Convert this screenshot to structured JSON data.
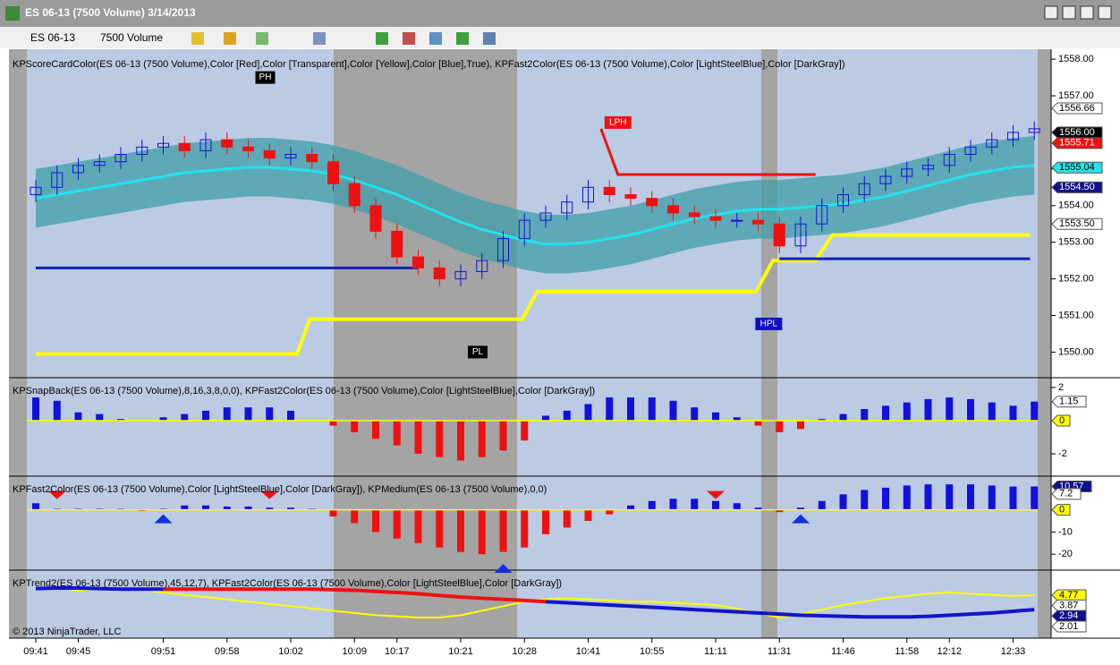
{
  "window": {
    "title": "ES 06-13 (7500 Volume)  3/14/2013"
  },
  "toolbar": {
    "instrument": "ES 06-13",
    "interval": "7500 Volume"
  },
  "copyright": "© 2013 NinjaTrader, LLC",
  "chart_data": [
    {
      "type": "candlestick",
      "title": "KPScoreCardColor(ES 06-13 (7500 Volume),Color [Red],Color [Transparent],Color [Yellow],Color [Blue],True), KPFast2Color(ES 06-13 (7500 Volume),Color [LightSteelBlue],Color [DarkGray])",
      "categories": [
        "09:41",
        null,
        "09:45",
        null,
        null,
        null,
        "09:51",
        null,
        null,
        "09:58",
        null,
        null,
        "10:02",
        null,
        null,
        "10:09",
        null,
        "10:17",
        null,
        null,
        "10:21",
        null,
        null,
        "10:28",
        null,
        null,
        "10:41",
        null,
        null,
        "10:55",
        null,
        null,
        "11:11",
        null,
        null,
        "11:31",
        null,
        null,
        "11:46",
        null,
        null,
        "11:58",
        null,
        "12:12",
        null,
        null,
        "12:33",
        null
      ],
      "open": [
        1554.3,
        1554.5,
        1554.9,
        1555.1,
        1555.2,
        1555.4,
        1555.6,
        1555.7,
        1555.5,
        1555.8,
        1555.6,
        1555.5,
        1555.3,
        1555.4,
        1555.2,
        1554.6,
        1554.0,
        1553.3,
        1552.6,
        1552.3,
        1552.0,
        1552.2,
        1552.5,
        1553.1,
        1553.6,
        1553.8,
        1554.1,
        1554.5,
        1554.3,
        1554.2,
        1554.0,
        1553.8,
        1553.7,
        1553.6,
        1553.6,
        1553.5,
        1552.9,
        1553.5,
        1554.0,
        1554.3,
        1554.6,
        1554.8,
        1555.0,
        1555.1,
        1555.4,
        1555.6,
        1555.8,
        1556.0
      ],
      "close": [
        1554.5,
        1554.9,
        1555.1,
        1555.2,
        1555.4,
        1555.6,
        1555.7,
        1555.5,
        1555.8,
        1555.6,
        1555.5,
        1555.3,
        1555.4,
        1555.2,
        1554.6,
        1554.0,
        1553.3,
        1552.6,
        1552.3,
        1552.0,
        1552.2,
        1552.5,
        1553.1,
        1553.6,
        1553.8,
        1554.1,
        1554.5,
        1554.3,
        1554.2,
        1554.0,
        1553.8,
        1553.7,
        1553.6,
        1553.6,
        1553.5,
        1552.9,
        1553.5,
        1554.0,
        1554.3,
        1554.6,
        1554.8,
        1555.0,
        1555.1,
        1555.4,
        1555.6,
        1555.8,
        1556.0,
        1556.1
      ],
      "high": [
        1554.7,
        1555.1,
        1555.3,
        1555.4,
        1555.6,
        1555.8,
        1555.9,
        1555.9,
        1556.0,
        1556.0,
        1555.8,
        1555.7,
        1555.6,
        1555.6,
        1555.4,
        1554.8,
        1554.2,
        1553.5,
        1552.8,
        1552.5,
        1552.4,
        1552.7,
        1553.3,
        1553.8,
        1554.0,
        1554.3,
        1554.7,
        1554.7,
        1554.5,
        1554.4,
        1554.2,
        1554.0,
        1553.9,
        1553.8,
        1553.8,
        1553.7,
        1553.7,
        1554.2,
        1554.5,
        1554.8,
        1555.0,
        1555.2,
        1555.3,
        1555.6,
        1555.8,
        1556.0,
        1556.2,
        1556.3
      ],
      "low": [
        1554.1,
        1554.3,
        1554.7,
        1554.9,
        1555.0,
        1555.2,
        1555.4,
        1555.3,
        1555.3,
        1555.4,
        1555.3,
        1555.1,
        1555.1,
        1555.0,
        1554.4,
        1553.8,
        1553.1,
        1552.4,
        1552.1,
        1551.8,
        1551.8,
        1552.0,
        1552.3,
        1552.9,
        1553.4,
        1553.6,
        1553.9,
        1554.1,
        1554.0,
        1553.8,
        1553.6,
        1553.5,
        1553.4,
        1553.4,
        1553.3,
        1552.7,
        1552.7,
        1553.3,
        1553.8,
        1554.1,
        1554.4,
        1554.6,
        1554.8,
        1554.9,
        1555.2,
        1555.4,
        1555.6,
        1555.8
      ],
      "up_color": "#1414d2",
      "down_color": "#ee1111",
      "band": {
        "color": "#3f9ea8",
        "upper": [
          1555.0,
          1555.1,
          1555.2,
          1555.3,
          1555.4,
          1555.5,
          1555.6,
          1555.7,
          1555.75,
          1555.8,
          1555.85,
          1555.85,
          1555.8,
          1555.75,
          1555.65,
          1555.5,
          1555.3,
          1555.1,
          1554.85,
          1554.6,
          1554.35,
          1554.15,
          1554.0,
          1553.85,
          1553.75,
          1553.75,
          1553.8,
          1553.9,
          1554.0,
          1554.15,
          1554.3,
          1554.45,
          1554.55,
          1554.65,
          1554.7,
          1554.7,
          1554.75,
          1554.8,
          1554.85,
          1554.95,
          1555.05,
          1555.2,
          1555.35,
          1555.5,
          1555.65,
          1555.75,
          1555.85,
          1555.9
        ],
        "lower": [
          1553.4,
          1553.5,
          1553.6,
          1553.7,
          1553.8,
          1553.9,
          1554.0,
          1554.1,
          1554.15,
          1554.2,
          1554.25,
          1554.25,
          1554.2,
          1554.15,
          1554.05,
          1553.9,
          1553.7,
          1553.5,
          1553.25,
          1553.0,
          1552.75,
          1552.55,
          1552.4,
          1552.25,
          1552.15,
          1552.15,
          1552.2,
          1552.3,
          1552.4,
          1552.55,
          1552.7,
          1552.85,
          1552.95,
          1553.05,
          1553.1,
          1553.1,
          1553.15,
          1553.2,
          1553.25,
          1553.35,
          1553.45,
          1553.6,
          1553.75,
          1553.9,
          1554.05,
          1554.15,
          1554.25,
          1554.3
        ]
      },
      "midline": {
        "color": "#22e4ec",
        "values": [
          1554.2,
          1554.3,
          1554.4,
          1554.5,
          1554.6,
          1554.7,
          1554.8,
          1554.9,
          1554.95,
          1555.0,
          1555.05,
          1555.05,
          1555.0,
          1554.95,
          1554.85,
          1554.7,
          1554.5,
          1554.3,
          1554.05,
          1553.8,
          1553.55,
          1553.35,
          1553.2,
          1553.05,
          1552.95,
          1552.95,
          1553.0,
          1553.1,
          1553.2,
          1553.35,
          1553.5,
          1553.65,
          1553.75,
          1553.85,
          1553.9,
          1553.9,
          1553.95,
          1554.0,
          1554.05,
          1554.15,
          1554.25,
          1554.4,
          1554.55,
          1554.7,
          1554.85,
          1554.95,
          1555.05,
          1555.1
        ]
      },
      "levels": [
        {
          "color": "#ffff00",
          "x": [
            0,
            12.3,
            12.9,
            22.9,
            23.6,
            33.9,
            34.7,
            36.7,
            37.5,
            46.8
          ],
          "values": [
            1549.95,
            1549.95,
            1550.9,
            1550.9,
            1551.65,
            1551.65,
            1552.5,
            1552.5,
            1553.2,
            1553.2
          ]
        },
        {
          "color": "#1020b0",
          "x": [
            0,
            18
          ],
          "values": [
            1552.3,
            1552.3
          ]
        },
        {
          "color": "#1020b0",
          "x": [
            35,
            46.8
          ],
          "values": [
            1552.55,
            1552.55
          ]
        },
        {
          "color": "#ee1111",
          "x": [
            26.6,
            27.4,
            36.7
          ],
          "values": [
            1556.1,
            1554.85,
            1554.85
          ]
        }
      ],
      "annotations": [
        {
          "text": "PH",
          "x": 10.8,
          "y": 1557.5,
          "bg": "#000000",
          "fg": "#ffffff"
        },
        {
          "text": "LPH",
          "x": 27.4,
          "y": 1556.27,
          "bg": "#ee1111",
          "fg": "#ffffff"
        },
        {
          "text": "PL",
          "x": 20.8,
          "y": 1550.0,
          "bg": "#000000",
          "fg": "#ffffff"
        },
        {
          "text": "HPL",
          "x": 34.5,
          "y": 1550.77,
          "bg": "#1010c0",
          "fg": "#ffffff"
        }
      ],
      "markers": [
        {
          "value": 1556.66,
          "label": "1556.66",
          "bg": "#ffffff",
          "fg": "#000000"
        },
        {
          "value": 1556.0,
          "label": "1556.00",
          "bg": "#000000",
          "fg": "#ffffff"
        },
        {
          "value": 1555.71,
          "label": "1555.71",
          "bg": "#ee1111",
          "fg": "#ffffff"
        },
        {
          "value": 1555.04,
          "label": "1555.04",
          "bg": "#22e4ec",
          "fg": "#000000"
        },
        {
          "value": 1554.5,
          "label": "1554.50",
          "bg": "#10108c",
          "fg": "#ffffff"
        },
        {
          "value": 1553.5,
          "label": "1553.50",
          "bg": "#ffffff",
          "fg": "#000000"
        }
      ],
      "ylim": [
        1549.35,
        1558.15
      ],
      "yticks": [
        {
          "value": 1550,
          "label": "1550.00"
        },
        {
          "value": 1551,
          "label": "1551.00"
        },
        {
          "value": 1552,
          "label": "1552.00"
        },
        {
          "value": 1553,
          "label": "1553.00"
        },
        {
          "value": 1554,
          "label": "1554.00"
        },
        {
          "value": 1555,
          "label": "1555.00"
        },
        {
          "value": 1556,
          "label": "1556.00"
        },
        {
          "value": 1557,
          "label": "1557.00"
        },
        {
          "value": 1558,
          "label": "1558.00"
        }
      ]
    },
    {
      "type": "bar",
      "title": "KPSnapBack(ES 06-13 (7500 Volume),8,16,3,8,0,0), KPFast2Color(ES 06-13 (7500 Volume),Color [LightSteelBlue],Color [DarkGray])",
      "values": [
        1.4,
        1.2,
        0.5,
        0.4,
        0.1,
        0,
        0.2,
        0.4,
        0.6,
        0.8,
        0.8,
        0.8,
        0.6,
        0,
        -0.3,
        -0.7,
        -1.1,
        -1.5,
        -2.0,
        -2.2,
        -2.4,
        -2.2,
        -1.8,
        -1.2,
        0.3,
        0.6,
        1.0,
        1.4,
        1.4,
        1.4,
        1.2,
        0.8,
        0.5,
        0.2,
        -0.3,
        -0.7,
        -0.5,
        0.1,
        0.4,
        0.7,
        0.9,
        1.1,
        1.3,
        1.4,
        1.3,
        1.1,
        0.9,
        1.15
      ],
      "pos_color": "#1010e0",
      "neg_color": "#ee1111",
      "zero_color": "#ffff00",
      "ylim": [
        -3.24,
        2.43
      ],
      "yticks": [
        2,
        -2
      ],
      "markers": [
        {
          "value": 1.15,
          "label": "1.15",
          "bg": "#ffffff",
          "fg": "#000000"
        },
        {
          "value": 0,
          "label": "0",
          "bg": "#ffff00",
          "fg": "#000000"
        }
      ]
    },
    {
      "type": "bar",
      "title": "KPFast2Color(ES 06-13 (7500 Volume),Color [LightSteelBlue],Color [DarkGray]), KPMedium(ES 06-13 (7500 Volume),0,0)",
      "values": [
        3,
        0.5,
        0.5,
        0.5,
        0.5,
        -0.5,
        0.5,
        2,
        2,
        1.5,
        1.5,
        1,
        1,
        0.5,
        -3,
        -6,
        -10,
        -13,
        -15,
        -17,
        -19,
        -20,
        -19,
        -17,
        -11,
        -8,
        -5,
        -2,
        2,
        4,
        5,
        5,
        4,
        3,
        1,
        -1,
        1,
        4,
        7,
        9,
        10,
        11,
        11.5,
        11.5,
        11.5,
        11,
        10.5,
        10.57
      ],
      "pos_color": "#1010e0",
      "neg_color": "#ee1111",
      "zero_color": "#ffff00",
      "down_signals": [
        1,
        11,
        32
      ],
      "up_signals": [
        6,
        22,
        36
      ],
      "ylim": [
        -26.4,
        14.0
      ],
      "yticks": [
        -10,
        -20
      ],
      "markers": [
        {
          "value": 10.57,
          "label": "10.57",
          "bg": "#10108c",
          "fg": "#ffffff"
        },
        {
          "value": 7.2,
          "label": "7.2",
          "bg": "#ffffff",
          "fg": "#000000"
        },
        {
          "value": 0,
          "label": "0",
          "bg": "#ffff00",
          "fg": "#000000"
        }
      ]
    },
    {
      "type": "line",
      "title": "KPTrend2(ES 06-13 (7500 Volume),45,12,7), KPFast2Color(ES 06-13 (7500 Volume),Color [LightSteelBlue],Color [DarkGray])",
      "series": [
        {
          "color": "#ffff00",
          "width": 2,
          "values": [
            5.4,
            5.5,
            5.2,
            5.3,
            5.3,
            5.2,
            5.0,
            4.8,
            4.6,
            4.4,
            4.2,
            4.0,
            3.8,
            3.6,
            3.4,
            3.2,
            3.0,
            2.9,
            2.8,
            2.8,
            3.0,
            3.4,
            3.8,
            4.2,
            4.4,
            4.5,
            4.4,
            4.3,
            4.2,
            4.2,
            4.1,
            4.0,
            3.9,
            3.6,
            3.2,
            2.8,
            3.1,
            3.5,
            3.9,
            4.2,
            4.5,
            4.7,
            4.9,
            5.0,
            4.9,
            4.8,
            4.7,
            4.77
          ]
        },
        {
          "color": "#ee1111",
          "width": 4,
          "values": [
            null,
            null,
            null,
            null,
            null,
            null,
            5.3,
            5.3,
            5.3,
            5.3,
            5.3,
            5.3,
            5.3,
            5.3,
            5.25,
            5.2,
            5.1,
            5.0,
            4.9,
            4.75,
            4.6,
            4.5,
            4.4,
            4.3,
            4.2,
            null,
            null,
            null,
            null,
            null,
            null,
            null,
            null,
            null,
            null,
            null,
            null,
            null,
            null,
            null,
            null,
            null,
            null,
            null,
            null,
            null,
            null,
            null
          ]
        },
        {
          "color": "#1414c8",
          "width": 4,
          "values": [
            5.35,
            5.4,
            5.4,
            5.35,
            5.3,
            5.3,
            5.3,
            null,
            null,
            null,
            null,
            null,
            null,
            null,
            null,
            null,
            null,
            null,
            null,
            null,
            null,
            null,
            null,
            null,
            4.2,
            4.1,
            4.0,
            3.9,
            3.8,
            3.7,
            3.6,
            3.5,
            3.4,
            3.3,
            3.2,
            3.1,
            3.0,
            2.95,
            2.9,
            2.85,
            2.85,
            2.85,
            2.9,
            3.0,
            3.1,
            3.2,
            3.35,
            3.5
          ]
        }
      ],
      "ylim": [
        1.06,
        6.74
      ],
      "markers": [
        {
          "value": 4.77,
          "label": "4.77",
          "bg": "#ffff00",
          "fg": "#000000"
        },
        {
          "value": 3.87,
          "label": "3.87",
          "bg": "#ffffff",
          "fg": "#000000"
        },
        {
          "value": 2.94,
          "label": "2.94",
          "bg": "#10108c",
          "fg": "#ffffff"
        },
        {
          "value": 2.01,
          "label": "2.01",
          "bg": "#ffffff",
          "fg": "#000000"
        }
      ]
    }
  ]
}
